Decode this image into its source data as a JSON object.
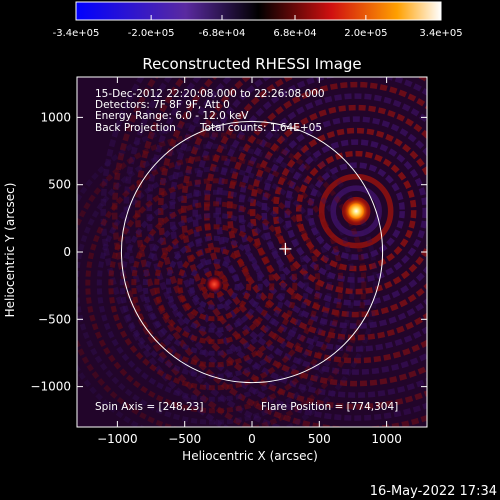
{
  "colorbar": {
    "ticks": [
      "-3.4e+05",
      "-2.0e+05",
      "-6.8e+04",
      "6.8e+04",
      "2.0e+05",
      "3.4e+05"
    ],
    "range": [
      -340000,
      340000
    ]
  },
  "plot": {
    "title": "Reconstructed RHESSI Image",
    "xlabel": "Heliocentric X (arcsec)",
    "ylabel": "Heliocentric Y (arcsec)",
    "annotations": {
      "time": "15-Dec-2012 22:20:08.000 to 22:26:08.000",
      "detectors": "Detectors: 7F 8F 9F, Att 0",
      "energy": "Energy Range: 6.0 - 12.0 keV",
      "method": "Back Projection",
      "counts": "Total counts: 1.64E+05",
      "spin_axis": "Spin Axis = [248,23]",
      "flare_position": "Flare Position = [774,304]"
    }
  },
  "footer": {
    "timestamp": "16-May-2022 17:34"
  },
  "chart_data": {
    "type": "heatmap",
    "xlim": [
      -1300,
      1300
    ],
    "ylim": [
      -1300,
      1300
    ],
    "x_ticks": [
      -1000,
      -500,
      0,
      500,
      1000
    ],
    "y_ticks": [
      1000,
      500,
      0,
      -500,
      -1000
    ],
    "x_tick_labels": [
      "−1000",
      "−500",
      "0",
      "500",
      "1000"
    ],
    "y_tick_labels": [
      "1000",
      "500",
      "0",
      "−500",
      "−1000"
    ],
    "solar_limb_radius": 970,
    "spin_axis": [
      248,
      23
    ],
    "flare_position": [
      774,
      304
    ],
    "sources": [
      {
        "x": 774,
        "y": 304
      },
      {
        "x": -280,
        "y": -240
      }
    ],
    "colormap": "red-temperature",
    "colors": {
      "axes": "#ffffff",
      "background": "#000000"
    }
  }
}
